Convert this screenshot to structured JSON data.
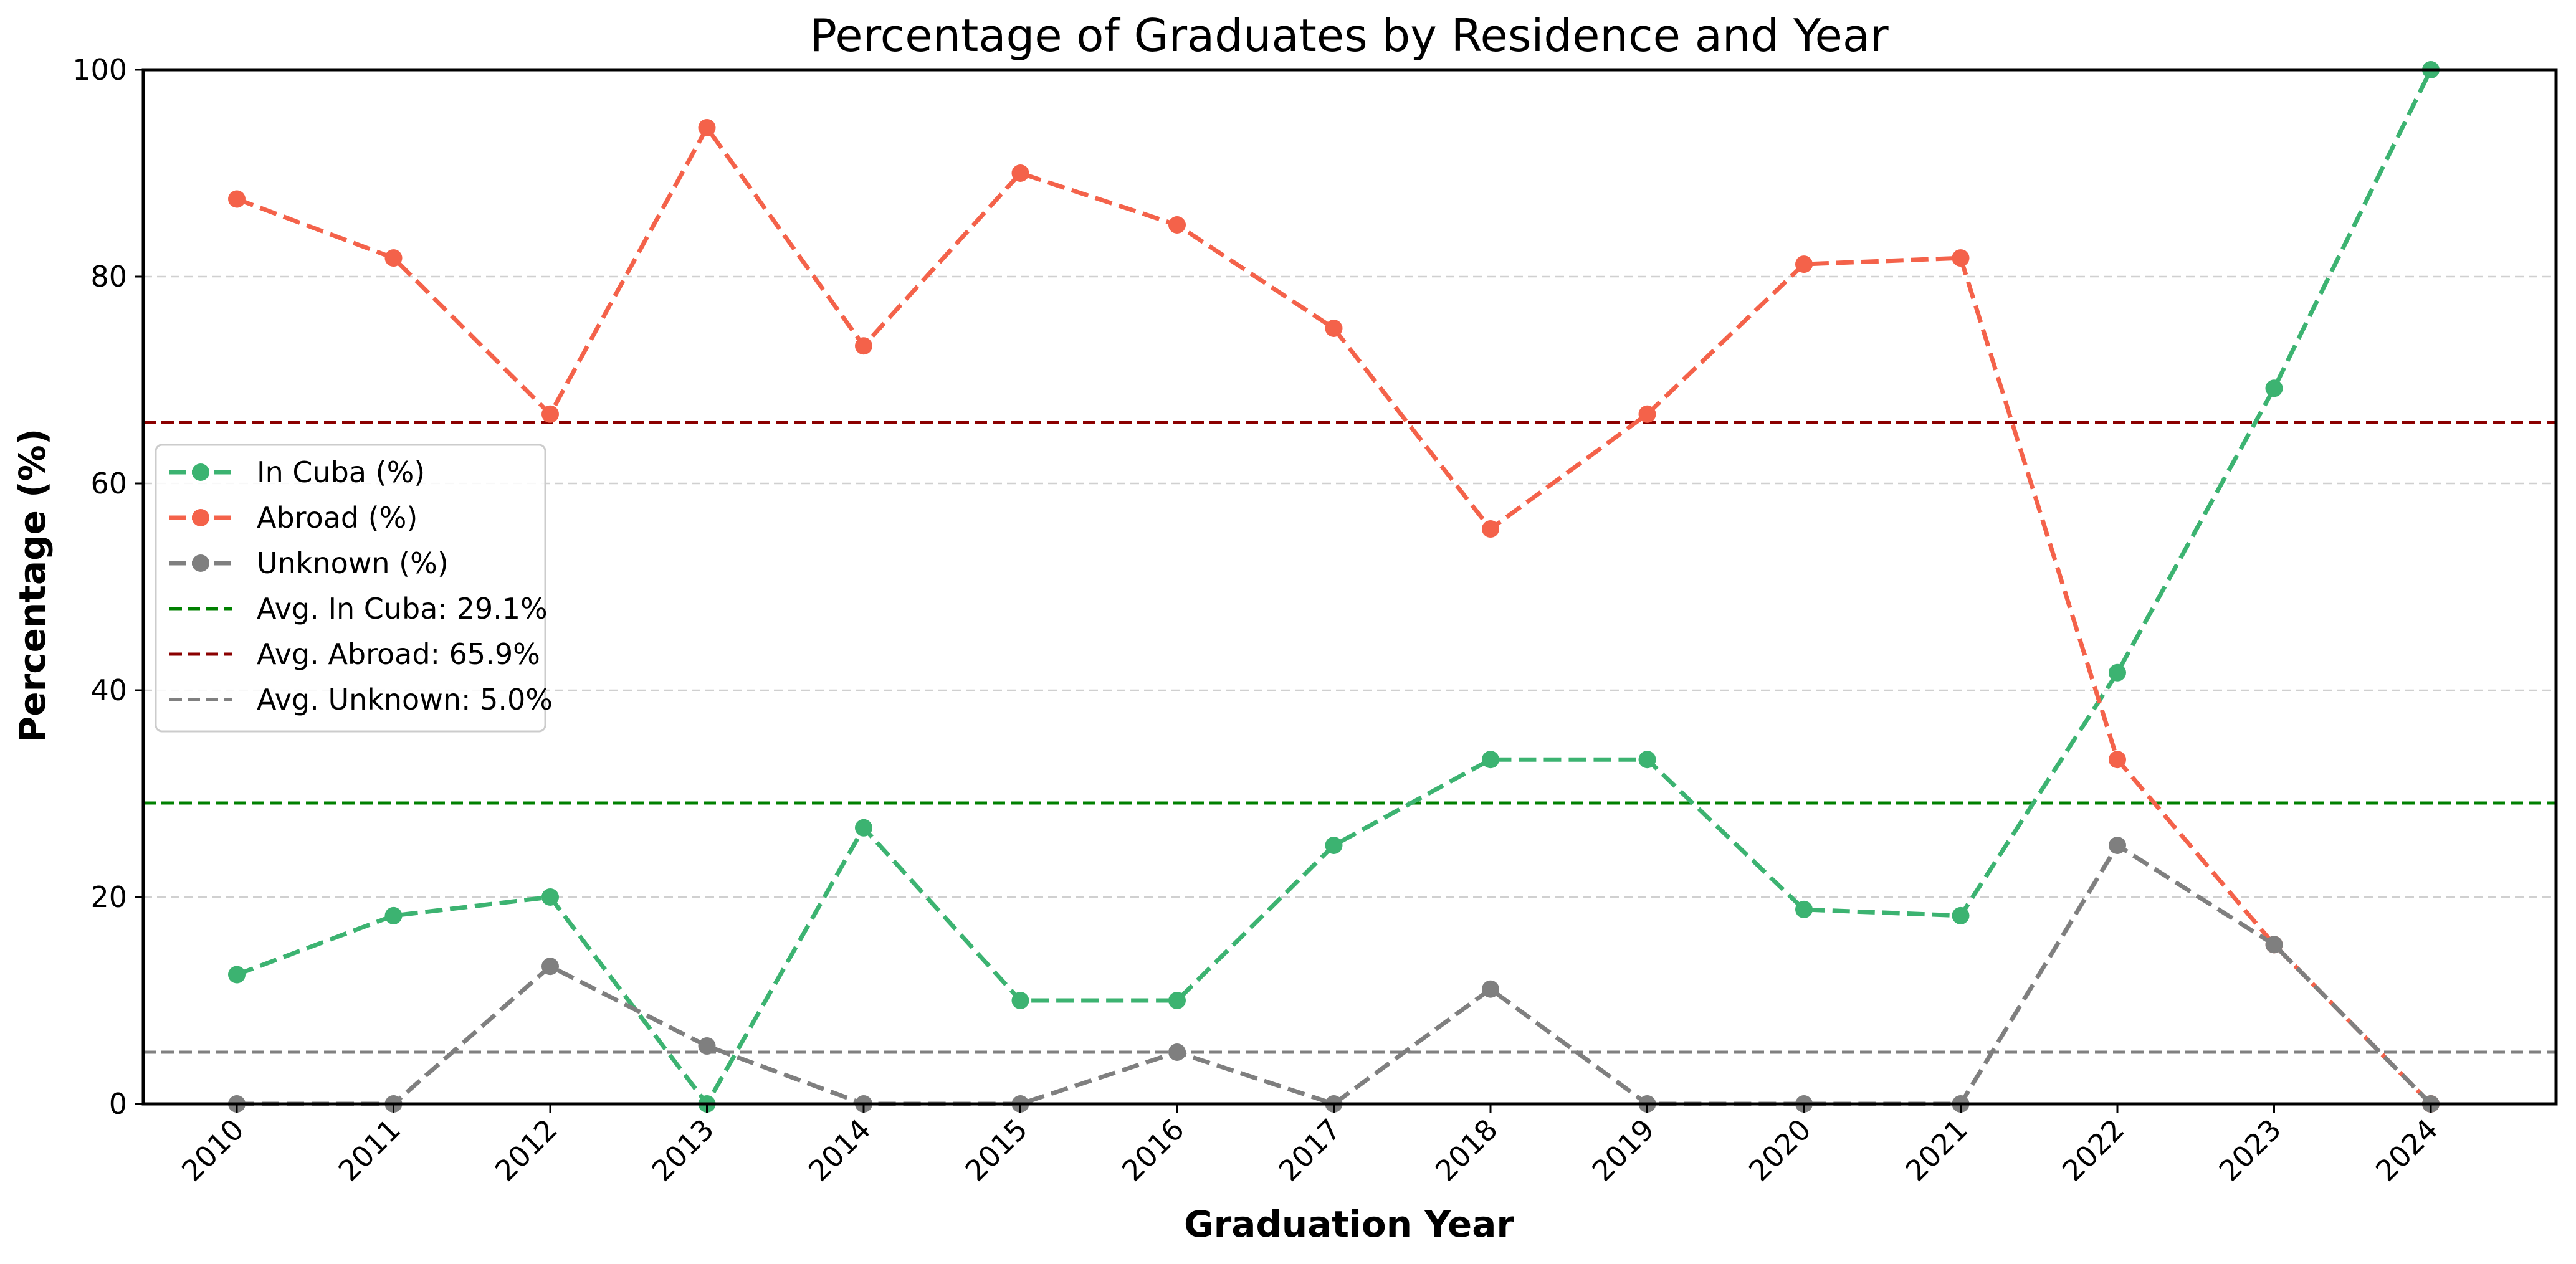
{
  "chart_data": {
    "type": "line",
    "title": "Percentage of Graduates by Residence and Year",
    "xlabel": "Graduation Year",
    "ylabel": "Percentage (%)",
    "x": [
      "2010",
      "2011",
      "2012",
      "2013",
      "2014",
      "2015",
      "2016",
      "2017",
      "2018",
      "2019",
      "2020",
      "2021",
      "2022",
      "2023",
      "2024"
    ],
    "ylim": [
      0,
      100
    ],
    "yticks": [
      0,
      20,
      40,
      60,
      80,
      100
    ],
    "grid": "horizontal-dashed",
    "legend_position": "center-left",
    "series": [
      {
        "name": "In Cuba (%)",
        "color": "#3cb371",
        "values": [
          12.5,
          18.2,
          20.0,
          0.0,
          26.7,
          10.0,
          10.0,
          25.0,
          33.3,
          33.3,
          18.8,
          18.2,
          41.7,
          69.2,
          100.0
        ]
      },
      {
        "name": "Abroad (%)",
        "color": "#f4624a",
        "values": [
          87.5,
          81.8,
          66.7,
          94.4,
          73.3,
          90.0,
          85.0,
          75.0,
          55.6,
          66.7,
          81.2,
          81.8,
          33.3,
          15.4,
          0.0
        ]
      },
      {
        "name": "Unknown (%)",
        "color": "#7f7f7f",
        "values": [
          0.0,
          0.0,
          13.3,
          5.6,
          0.0,
          0.0,
          5.0,
          0.0,
          11.1,
          0.0,
          0.0,
          0.0,
          25.0,
          15.4,
          0.0
        ]
      }
    ],
    "reference_lines": [
      {
        "name": "Avg. In Cuba: 29.1%",
        "value": 29.1,
        "color": "#008000"
      },
      {
        "name": "Avg. Abroad: 65.9%",
        "value": 65.9,
        "color": "#8b0000"
      },
      {
        "name": "Avg. Unknown: 5.0%",
        "value": 5.0,
        "color": "#808080"
      }
    ]
  }
}
